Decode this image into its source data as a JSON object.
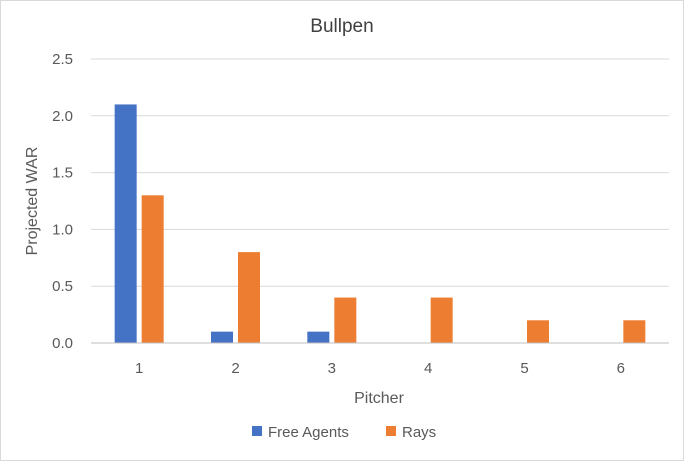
{
  "chart_data": {
    "type": "bar",
    "title": "Bullpen",
    "xlabel": "Pitcher",
    "ylabel": "Projected WAR",
    "categories": [
      "1",
      "2",
      "3",
      "4",
      "5",
      "6"
    ],
    "series": [
      {
        "name": "Free Agents",
        "color": "#4472c4",
        "values": [
          2.1,
          0.1,
          0.1,
          null,
          null,
          null
        ]
      },
      {
        "name": "Rays",
        "color": "#ed7d31",
        "values": [
          1.3,
          0.8,
          0.4,
          0.4,
          0.2,
          0.2
        ]
      }
    ],
    "ylim": [
      0,
      2.5
    ],
    "yticks": [
      "0.0",
      "0.5",
      "1.0",
      "1.5",
      "2.0",
      "2.5"
    ],
    "grid": true,
    "legend_position": "bottom"
  }
}
